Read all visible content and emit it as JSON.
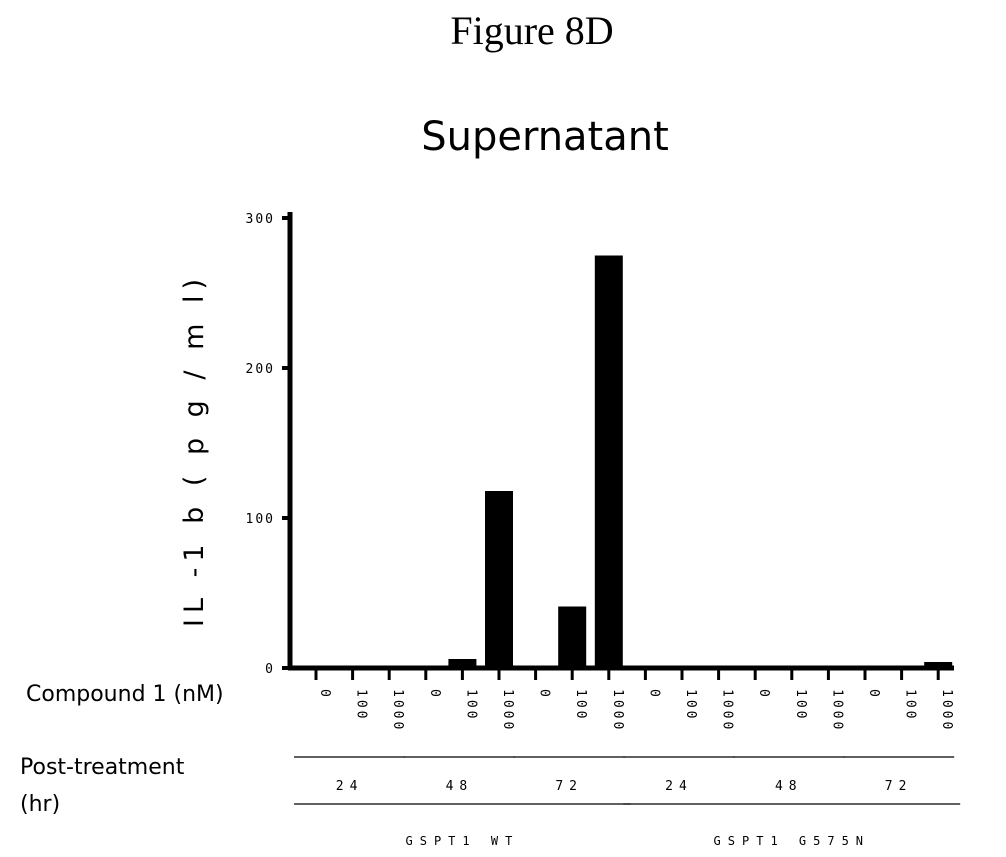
{
  "figure_title": "Figure 8D",
  "chart_data": {
    "type": "bar",
    "title": "Supernatant",
    "ylabel": "IL -1 b ( p g / m l)",
    "ylim": [
      0,
      300
    ],
    "yticks": [
      "0",
      "100",
      "200",
      "300"
    ],
    "row_labels": {
      "compound": "Compound 1 (nM)",
      "post_treatment_line1": "Post-treatment",
      "post_treatment_line2": "(hr)"
    },
    "groups": [
      {
        "name": "GSPT1 WT",
        "times": [
          {
            "time": "24",
            "bars": [
              {
                "conc": "0",
                "value": 0
              },
              {
                "conc": "100",
                "value": 0
              },
              {
                "conc": "1000",
                "value": 0
              }
            ]
          },
          {
            "time": "48",
            "bars": [
              {
                "conc": "0",
                "value": 0
              },
              {
                "conc": "100",
                "value": 6
              },
              {
                "conc": "1000",
                "value": 118
              }
            ]
          },
          {
            "time": "72",
            "bars": [
              {
                "conc": "0",
                "value": 0
              },
              {
                "conc": "100",
                "value": 41
              },
              {
                "conc": "1000",
                "value": 275
              }
            ]
          }
        ]
      },
      {
        "name": "GSPT1 G575N",
        "times": [
          {
            "time": "24",
            "bars": [
              {
                "conc": "0",
                "value": 0
              },
              {
                "conc": "100",
                "value": 0
              },
              {
                "conc": "1000",
                "value": 0
              }
            ]
          },
          {
            "time": "48",
            "bars": [
              {
                "conc": "0",
                "value": 0
              },
              {
                "conc": "100",
                "value": 1
              },
              {
                "conc": "1000",
                "value": 1
              }
            ]
          },
          {
            "time": "72",
            "bars": [
              {
                "conc": "0",
                "value": 1
              },
              {
                "conc": "100",
                "value": 1
              },
              {
                "conc": "1000",
                "value": 4
              }
            ]
          }
        ]
      }
    ]
  }
}
